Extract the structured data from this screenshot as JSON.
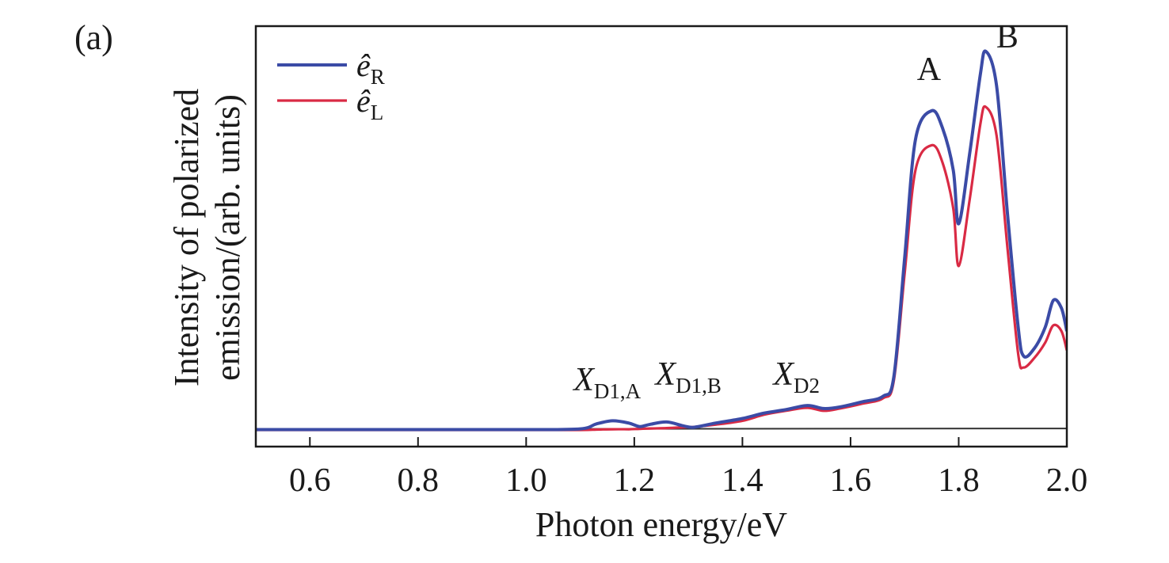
{
  "chart_data": {
    "type": "line",
    "panel_label": "(a)",
    "xlabel": "Photon energy/eV",
    "ylabel_lines": [
      "Intensity of polarized",
      "emission/(arb. units)"
    ],
    "xlim": [
      0.5,
      2.0
    ],
    "ylim": [
      0,
      1.0
    ],
    "xticks": [
      0.6,
      0.8,
      1.0,
      1.2,
      1.4,
      1.6,
      1.8,
      2.0
    ],
    "xtick_labels": [
      "0.6",
      "0.8",
      "1.0",
      "1.2",
      "1.4",
      "1.6",
      "1.8",
      "2.0"
    ],
    "grid": false,
    "legend_position": "top-left",
    "series": [
      {
        "name": "ê_R",
        "legend_symbol": "ê",
        "legend_subscript": "R",
        "color": "#3b4ba6",
        "x": [
          0.5,
          0.8,
          1.0,
          1.1,
          1.13,
          1.16,
          1.19,
          1.21,
          1.23,
          1.26,
          1.29,
          1.31,
          1.35,
          1.4,
          1.44,
          1.48,
          1.52,
          1.55,
          1.58,
          1.62,
          1.66,
          1.68,
          1.7,
          1.72,
          1.75,
          1.77,
          1.79,
          1.8,
          1.82,
          1.84,
          1.85,
          1.87,
          1.89,
          1.91,
          1.92,
          1.94,
          1.96,
          1.975,
          1.99,
          2.0
        ],
        "values": [
          0.003,
          0.003,
          0.003,
          0.005,
          0.018,
          0.026,
          0.02,
          0.011,
          0.017,
          0.023,
          0.013,
          0.009,
          0.02,
          0.032,
          0.046,
          0.055,
          0.066,
          0.058,
          0.062,
          0.075,
          0.09,
          0.14,
          0.45,
          0.76,
          0.835,
          0.79,
          0.68,
          0.54,
          0.72,
          0.93,
          0.99,
          0.9,
          0.57,
          0.27,
          0.195,
          0.215,
          0.27,
          0.34,
          0.32,
          0.26
        ]
      },
      {
        "name": "ê_L",
        "legend_symbol": "ê",
        "legend_subscript": "L",
        "color": "#d92a44",
        "x": [
          0.5,
          0.8,
          1.0,
          1.1,
          1.13,
          1.16,
          1.19,
          1.21,
          1.23,
          1.26,
          1.29,
          1.31,
          1.35,
          1.4,
          1.44,
          1.48,
          1.52,
          1.55,
          1.58,
          1.62,
          1.66,
          1.68,
          1.7,
          1.72,
          1.75,
          1.77,
          1.79,
          1.8,
          1.82,
          1.84,
          1.85,
          1.87,
          1.89,
          1.91,
          1.92,
          1.94,
          1.96,
          1.975,
          1.99,
          2.0
        ],
        "values": [
          0.002,
          0.002,
          0.002,
          0.002,
          0.003,
          0.004,
          0.004,
          0.005,
          0.006,
          0.007,
          0.009,
          0.01,
          0.016,
          0.026,
          0.042,
          0.052,
          0.06,
          0.052,
          0.058,
          0.07,
          0.085,
          0.13,
          0.41,
          0.68,
          0.745,
          0.7,
          0.58,
          0.43,
          0.6,
          0.8,
          0.845,
          0.77,
          0.48,
          0.2,
          0.165,
          0.19,
          0.23,
          0.275,
          0.26,
          0.21
        ]
      }
    ],
    "baseline": {
      "color": "#333333",
      "values_at_xlim": [
        0.004,
        0.006
      ]
    },
    "annotations": [
      {
        "text": "A",
        "x": 1.745,
        "y": 0.915
      },
      {
        "text": "B",
        "x": 1.89,
        "y": 1.0
      },
      {
        "symbol": "X",
        "subscript": "D1,A",
        "x": 1.15,
        "y": 0.105
      },
      {
        "symbol": "X",
        "subscript": "D1,B",
        "x": 1.3,
        "y": 0.12
      },
      {
        "symbol": "X",
        "subscript": "D2",
        "x": 1.5,
        "y": 0.12
      }
    ]
  }
}
